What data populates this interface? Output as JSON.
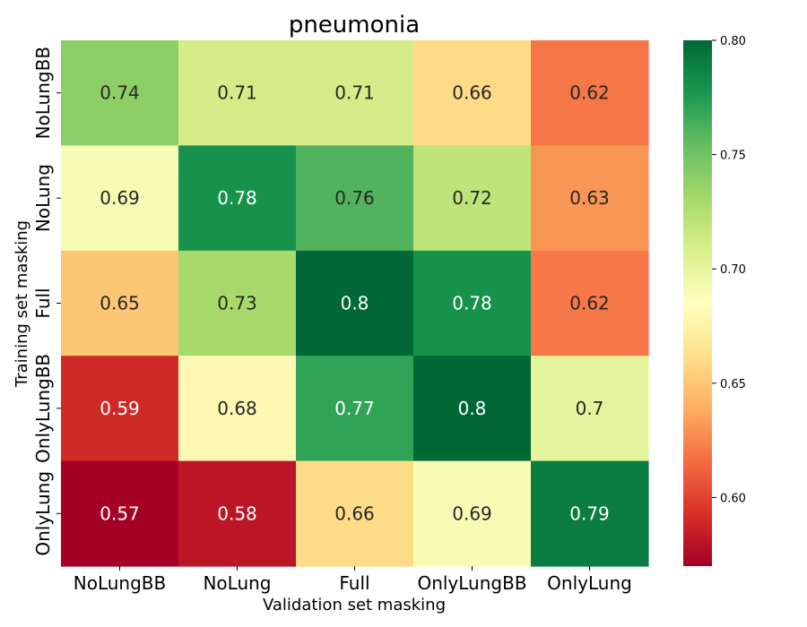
{
  "chart_data": {
    "type": "heatmap",
    "title": "pneumonia",
    "xlabel": "Validation set masking",
    "ylabel": "Training set masking",
    "x_categories": [
      "NoLungBB",
      "NoLung",
      "Full",
      "OnlyLungBB",
      "OnlyLung"
    ],
    "y_categories": [
      "NoLungBB",
      "NoLung",
      "Full",
      "OnlyLungBB",
      "OnlyLung"
    ],
    "values": [
      [
        0.74,
        0.71,
        0.71,
        0.66,
        0.62
      ],
      [
        0.69,
        0.78,
        0.76,
        0.72,
        0.63
      ],
      [
        0.65,
        0.73,
        0.8,
        0.78,
        0.62
      ],
      [
        0.59,
        0.68,
        0.77,
        0.8,
        0.7
      ],
      [
        0.57,
        0.58,
        0.66,
        0.69,
        0.79
      ]
    ],
    "cell_labels": [
      [
        "0.74",
        "0.71",
        "0.71",
        "0.66",
        "0.62"
      ],
      [
        "0.69",
        "0.78",
        "0.76",
        "0.72",
        "0.63"
      ],
      [
        "0.65",
        "0.73",
        "0.8",
        "0.78",
        "0.62"
      ],
      [
        "0.59",
        "0.68",
        "0.77",
        "0.8",
        "0.7"
      ],
      [
        "0.57",
        "0.58",
        "0.66",
        "0.69",
        "0.79"
      ]
    ],
    "colormap": "RdYlGn",
    "vmin": 0.57,
    "vmax": 0.8,
    "colorbar": {
      "ticks": [
        0.6,
        0.65,
        0.7,
        0.75,
        0.8
      ],
      "tick_labels": [
        "0.60",
        "0.65",
        "0.70",
        "0.75",
        "0.80"
      ],
      "placement": "right"
    },
    "grid": false
  }
}
